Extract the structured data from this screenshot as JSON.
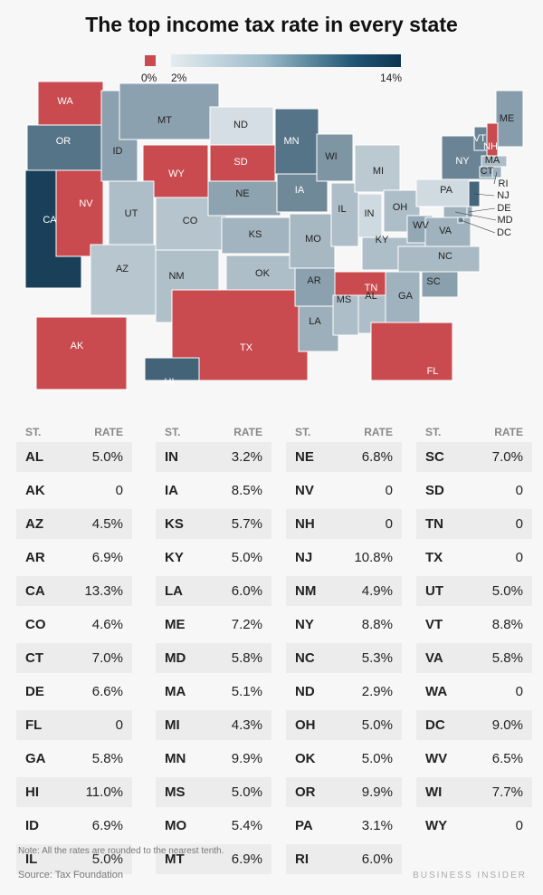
{
  "title": "The top income tax rate in every state",
  "legend": {
    "zero_label": "0%",
    "min_label": "2%",
    "max_label": "14%",
    "zero_color": "#c94b4f",
    "low_color": "#e4ecf0",
    "high_color": "#0d3550"
  },
  "table_headers": {
    "state": "ST.",
    "rate": "RATE"
  },
  "note": "Note: All the rates are rounded to the nearest tenth.",
  "source": "Source: Tax Foundation",
  "brand": "BUSINESS INSIDER",
  "chart_data": {
    "type": "table",
    "title": "The top income tax rate in every state",
    "columns": [
      "ST.",
      "RATE"
    ],
    "rows": [
      [
        "AL",
        "5.0%",
        5.0
      ],
      [
        "AK",
        "0",
        0
      ],
      [
        "AZ",
        "4.5%",
        4.5
      ],
      [
        "AR",
        "6.9%",
        6.9
      ],
      [
        "CA",
        "13.3%",
        13.3
      ],
      [
        "CO",
        "4.6%",
        4.6
      ],
      [
        "CT",
        "7.0%",
        7.0
      ],
      [
        "DE",
        "6.6%",
        6.6
      ],
      [
        "FL",
        "0",
        0
      ],
      [
        "GA",
        "5.8%",
        5.8
      ],
      [
        "HI",
        "11.0%",
        11.0
      ],
      [
        "ID",
        "6.9%",
        6.9
      ],
      [
        "IL",
        "5.0%",
        5.0
      ],
      [
        "IN",
        "3.2%",
        3.2
      ],
      [
        "IA",
        "8.5%",
        8.5
      ],
      [
        "KS",
        "5.7%",
        5.7
      ],
      [
        "KY",
        "5.0%",
        5.0
      ],
      [
        "LA",
        "6.0%",
        6.0
      ],
      [
        "ME",
        "7.2%",
        7.2
      ],
      [
        "MD",
        "5.8%",
        5.8
      ],
      [
        "MA",
        "5.1%",
        5.1
      ],
      [
        "MI",
        "4.3%",
        4.3
      ],
      [
        "MN",
        "9.9%",
        9.9
      ],
      [
        "MS",
        "5.0%",
        5.0
      ],
      [
        "MO",
        "5.4%",
        5.4
      ],
      [
        "MT",
        "6.9%",
        6.9
      ],
      [
        "NE",
        "6.8%",
        6.8
      ],
      [
        "NV",
        "0",
        0
      ],
      [
        "NH",
        "0",
        0
      ],
      [
        "NJ",
        "10.8%",
        10.8
      ],
      [
        "NM",
        "4.9%",
        4.9
      ],
      [
        "NY",
        "8.8%",
        8.8
      ],
      [
        "NC",
        "5.3%",
        5.3
      ],
      [
        "ND",
        "2.9%",
        2.9
      ],
      [
        "OH",
        "5.0%",
        5.0
      ],
      [
        "OK",
        "5.0%",
        5.0
      ],
      [
        "OR",
        "9.9%",
        9.9
      ],
      [
        "PA",
        "3.1%",
        3.1
      ],
      [
        "RI",
        "6.0%",
        6.0
      ],
      [
        "SC",
        "7.0%",
        7.0
      ],
      [
        "SD",
        "0",
        0
      ],
      [
        "TN",
        "0",
        0
      ],
      [
        "TX",
        "0",
        0
      ],
      [
        "UT",
        "5.0%",
        5.0
      ],
      [
        "VT",
        "8.8%",
        8.8
      ],
      [
        "VA",
        "5.8%",
        5.8
      ],
      [
        "WA",
        "0",
        0
      ],
      [
        "DC",
        "9.0%",
        9.0
      ],
      [
        "WV",
        "6.5%",
        6.5
      ],
      [
        "WI",
        "7.7%",
        7.7
      ],
      [
        "WY",
        "0",
        0
      ]
    ],
    "color_scale": {
      "zero": "0%",
      "min": 2,
      "max": 14,
      "unit": "%"
    }
  }
}
